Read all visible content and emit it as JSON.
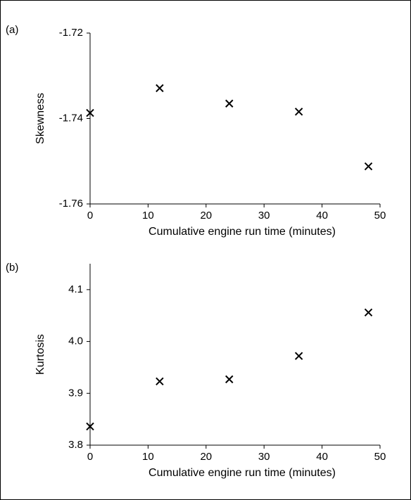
{
  "chart_data": [
    {
      "type": "scatter",
      "panel_label": "(a)",
      "xlabel": "Cumulative engine run time (minutes)",
      "ylabel": "Skewness",
      "x": [
        0,
        12,
        24,
        36,
        48
      ],
      "values": [
        -1.7387,
        -1.7329,
        -1.7365,
        -1.7384,
        -1.7512
      ],
      "xlim": [
        0,
        50
      ],
      "xticks": [
        0,
        10,
        20,
        30,
        40,
        50
      ],
      "ylim": [
        -1.76,
        -1.72
      ],
      "yticks": [
        -1.76,
        -1.74,
        -1.72
      ],
      "color": "#000000"
    },
    {
      "type": "scatter",
      "panel_label": "(b)",
      "xlabel": "Cumulative engine run time (minutes)",
      "ylabel": "Kurtosis",
      "x": [
        0,
        12,
        24,
        36,
        48
      ],
      "values": [
        3.836,
        3.923,
        3.927,
        3.972,
        4.056
      ],
      "xlim": [
        0,
        50
      ],
      "xticks": [
        0,
        10,
        20,
        30,
        40,
        50
      ],
      "ylim": [
        3.8,
        4.15
      ],
      "yticks": [
        3.8,
        3.9,
        {
          "value": 4,
          "label": "4.0"
        },
        4.1
      ],
      "color": "#000000"
    }
  ]
}
